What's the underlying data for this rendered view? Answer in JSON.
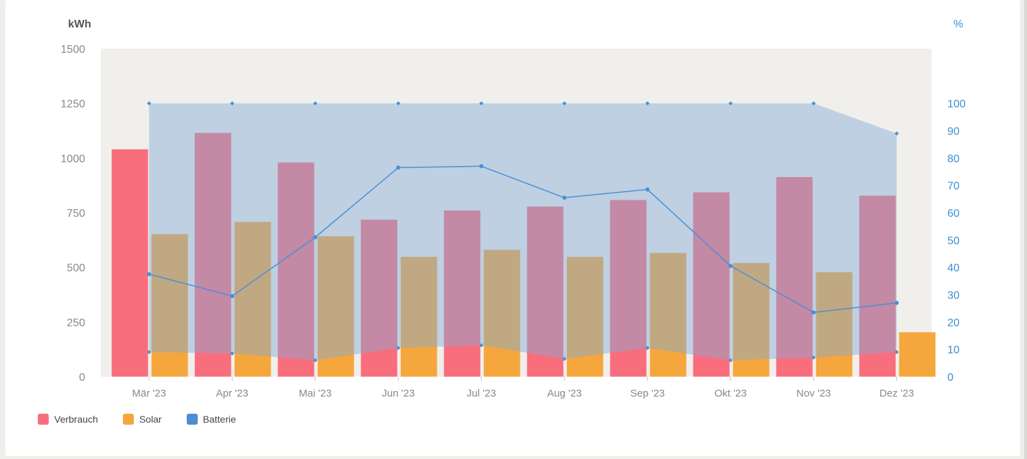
{
  "chart_data": {
    "type": "bar",
    "left_axis_unit": "kWh",
    "right_axis_unit": "%",
    "categories": [
      "Mär '23",
      "Apr '23",
      "Mai '23",
      "Jun '23",
      "Jul '23",
      "Aug '23",
      "Sep '23",
      "Okt '23",
      "Nov '23",
      "Dez '23"
    ],
    "ylim": [
      0,
      1500
    ],
    "y_ticks": [
      "0",
      "250",
      "500",
      "750",
      "1000",
      "1250",
      "1500"
    ],
    "y2lim": [
      0,
      120
    ],
    "y2_ticks": [
      "0",
      "10",
      "20",
      "30",
      "40",
      "50",
      "60",
      "70",
      "80",
      "90",
      "100"
    ],
    "series": [
      {
        "name": "Verbrauch",
        "type": "bar",
        "color": "#f96e7c",
        "values": [
          1040,
          1115,
          980,
          718,
          760,
          778,
          808,
          843,
          913,
          828
        ]
      },
      {
        "name": "Solar",
        "type": "bar",
        "color": "#f5a73d",
        "values": [
          652,
          708,
          642,
          548,
          580,
          548,
          566,
          520,
          478,
          203
        ]
      },
      {
        "name": "Batterie",
        "type": "area",
        "color": "#4a8fd3",
        "upper_pct": [
          100,
          100,
          100,
          100,
          100,
          100,
          100,
          100,
          100,
          89
        ],
        "lower_pct": [
          9,
          8.5,
          6,
          10.5,
          11.5,
          6.5,
          10.5,
          6,
          7,
          9
        ],
        "line_pct": [
          37.5,
          29.5,
          51,
          76.5,
          77,
          65.5,
          68.5,
          40.5,
          23.5,
          27
        ]
      }
    ],
    "grid": false,
    "legend_position": "bottom-left"
  },
  "legend": {
    "items": [
      {
        "label": "Verbrauch",
        "color": "#f96e7c"
      },
      {
        "label": "Solar",
        "color": "#f5a73d"
      },
      {
        "label": "Batterie",
        "color": "#4a8fd3"
      }
    ]
  }
}
